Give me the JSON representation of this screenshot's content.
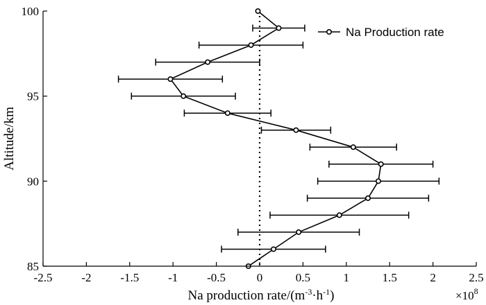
{
  "chart_data": {
    "type": "line",
    "title": "",
    "xlabel": "Na production rate/(m-3·h-1)",
    "xlabel_parts": {
      "base": "Na production rate/(m",
      "sup1": "-3",
      "mid": "·h",
      "sup2": "-1",
      "end": ")"
    },
    "ylabel": "Altitude/km",
    "xlim": [
      -2.5,
      2.5
    ],
    "ylim": [
      85,
      100
    ],
    "x_ticks": [
      -2.5,
      -2,
      -1.5,
      -1,
      -0.5,
      0,
      0.5,
      1,
      1.5,
      2,
      2.5
    ],
    "x_tick_labels": [
      "-2.5",
      "-2",
      "-1.5",
      "-1",
      "-0.5",
      "0",
      "0.5",
      "1",
      "1.5",
      "2",
      "2.5"
    ],
    "y_ticks": [
      85,
      90,
      95,
      100
    ],
    "y_tick_labels": [
      "85",
      "90",
      "95",
      "100"
    ],
    "x_multiplier": {
      "base": "×10",
      "exp": "8"
    },
    "reference_line_x": 0,
    "legend": {
      "entries": [
        "Na Production rate"
      ],
      "position": "top-right"
    },
    "series": [
      {
        "name": "Na Production rate",
        "points": [
          {
            "y": 100,
            "x": -0.02,
            "err": 0
          },
          {
            "y": 99,
            "x": 0.22,
            "err": 0.3
          },
          {
            "y": 98,
            "x": -0.1,
            "err": 0.6
          },
          {
            "y": 97,
            "x": -0.6,
            "err": 0.6
          },
          {
            "y": 96,
            "x": -1.03,
            "err": 0.6
          },
          {
            "y": 95,
            "x": -0.88,
            "err": 0.6
          },
          {
            "y": 94,
            "x": -0.37,
            "err": 0.5
          },
          {
            "y": 93,
            "x": 0.42,
            "err": 0.4
          },
          {
            "y": 92,
            "x": 1.08,
            "err": 0.5
          },
          {
            "y": 91,
            "x": 1.4,
            "err": 0.6
          },
          {
            "y": 90,
            "x": 1.37,
            "err": 0.7
          },
          {
            "y": 89,
            "x": 1.25,
            "err": 0.7
          },
          {
            "y": 88,
            "x": 0.92,
            "err": 0.8
          },
          {
            "y": 87,
            "x": 0.45,
            "err": 0.7
          },
          {
            "y": 86,
            "x": 0.16,
            "err": 0.6
          },
          {
            "y": 85,
            "x": -0.13,
            "err": 0
          }
        ]
      }
    ]
  }
}
